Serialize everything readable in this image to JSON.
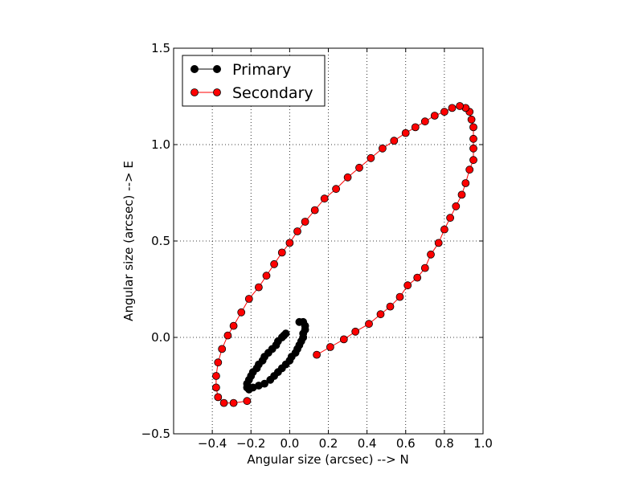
{
  "chart_data": {
    "type": "scatter",
    "title": "",
    "xlabel": "Angular size (arcsec) --> N",
    "ylabel": "Angular size (arcsec) --> E",
    "xlim": [
      -0.6,
      1.0
    ],
    "ylim": [
      -0.5,
      1.5
    ],
    "xticks": [
      -0.4,
      -0.2,
      0.0,
      0.2,
      0.4,
      0.6,
      0.8,
      1.0
    ],
    "xtick_labels": [
      "−0.4",
      "−0.2",
      "0.0",
      "0.2",
      "0.4",
      "0.6",
      "0.8",
      "1.0"
    ],
    "yticks": [
      -0.5,
      0.0,
      0.5,
      1.0,
      1.5
    ],
    "ytick_labels": [
      "−0.5",
      "0.0",
      "0.5",
      "1.0",
      "1.5"
    ],
    "grid": true,
    "legend_position": "top-left",
    "series": [
      {
        "name": "Primary",
        "color": "#000000",
        "marker": "circle",
        "line": true,
        "points": [
          [
            0.07,
            0.08
          ],
          [
            0.05,
            0.08
          ],
          [
            0.08,
            0.06
          ],
          [
            0.08,
            0.04
          ],
          [
            0.07,
            0.02
          ],
          [
            0.07,
            0.0
          ],
          [
            0.06,
            -0.02
          ],
          [
            0.05,
            -0.04
          ],
          [
            0.04,
            -0.06
          ],
          [
            0.03,
            -0.08
          ],
          [
            0.01,
            -0.1
          ],
          [
            0.0,
            -0.12
          ],
          [
            -0.02,
            -0.14
          ],
          [
            -0.04,
            -0.16
          ],
          [
            -0.06,
            -0.18
          ],
          [
            -0.08,
            -0.2
          ],
          [
            -0.1,
            -0.22
          ],
          [
            -0.13,
            -0.24
          ],
          [
            -0.16,
            -0.25
          ],
          [
            -0.19,
            -0.26
          ],
          [
            -0.21,
            -0.27
          ],
          [
            -0.22,
            -0.26
          ],
          [
            -0.22,
            -0.24
          ],
          [
            -0.21,
            -0.22
          ],
          [
            -0.2,
            -0.2
          ],
          [
            -0.19,
            -0.18
          ],
          [
            -0.17,
            -0.16
          ],
          [
            -0.16,
            -0.14
          ],
          [
            -0.14,
            -0.12
          ],
          [
            -0.13,
            -0.1
          ],
          [
            -0.11,
            -0.08
          ],
          [
            -0.09,
            -0.06
          ],
          [
            -0.07,
            -0.04
          ],
          [
            -0.06,
            -0.02
          ],
          [
            -0.04,
            0.0
          ],
          [
            -0.03,
            0.01
          ],
          [
            -0.02,
            0.02
          ]
        ]
      },
      {
        "name": "Secondary",
        "color": "#ff0000",
        "marker": "circle",
        "line": true,
        "points": [
          [
            0.14,
            -0.09
          ],
          [
            0.21,
            -0.05
          ],
          [
            0.28,
            -0.01
          ],
          [
            0.34,
            0.03
          ],
          [
            0.41,
            0.07
          ],
          [
            0.47,
            0.12
          ],
          [
            0.52,
            0.16
          ],
          [
            0.57,
            0.21
          ],
          [
            0.61,
            0.27
          ],
          [
            0.66,
            0.31
          ],
          [
            0.7,
            0.36
          ],
          [
            0.73,
            0.43
          ],
          [
            0.77,
            0.49
          ],
          [
            0.8,
            0.56
          ],
          [
            0.83,
            0.62
          ],
          [
            0.86,
            0.68
          ],
          [
            0.89,
            0.74
          ],
          [
            0.91,
            0.8
          ],
          [
            0.93,
            0.87
          ],
          [
            0.95,
            0.92
          ],
          [
            0.95,
            0.98
          ],
          [
            0.95,
            1.03
          ],
          [
            0.95,
            1.09
          ],
          [
            0.94,
            1.13
          ],
          [
            0.93,
            1.17
          ],
          [
            0.91,
            1.19
          ],
          [
            0.88,
            1.2
          ],
          [
            0.84,
            1.19
          ],
          [
            0.8,
            1.17
          ],
          [
            0.75,
            1.15
          ],
          [
            0.7,
            1.12
          ],
          [
            0.65,
            1.09
          ],
          [
            0.6,
            1.06
          ],
          [
            0.54,
            1.02
          ],
          [
            0.48,
            0.98
          ],
          [
            0.42,
            0.93
          ],
          [
            0.36,
            0.88
          ],
          [
            0.3,
            0.83
          ],
          [
            0.24,
            0.77
          ],
          [
            0.18,
            0.72
          ],
          [
            0.13,
            0.66
          ],
          [
            0.08,
            0.6
          ],
          [
            0.04,
            0.55
          ],
          [
            0.0,
            0.49
          ],
          [
            -0.04,
            0.44
          ],
          [
            -0.08,
            0.38
          ],
          [
            -0.12,
            0.32
          ],
          [
            -0.16,
            0.26
          ],
          [
            -0.21,
            0.2
          ],
          [
            -0.25,
            0.13
          ],
          [
            -0.29,
            0.06
          ],
          [
            -0.32,
            0.01
          ],
          [
            -0.35,
            -0.06
          ],
          [
            -0.37,
            -0.13
          ],
          [
            -0.38,
            -0.2
          ],
          [
            -0.38,
            -0.26
          ],
          [
            -0.37,
            -0.31
          ],
          [
            -0.34,
            -0.34
          ],
          [
            -0.29,
            -0.34
          ],
          [
            -0.22,
            -0.33
          ]
        ]
      }
    ]
  }
}
